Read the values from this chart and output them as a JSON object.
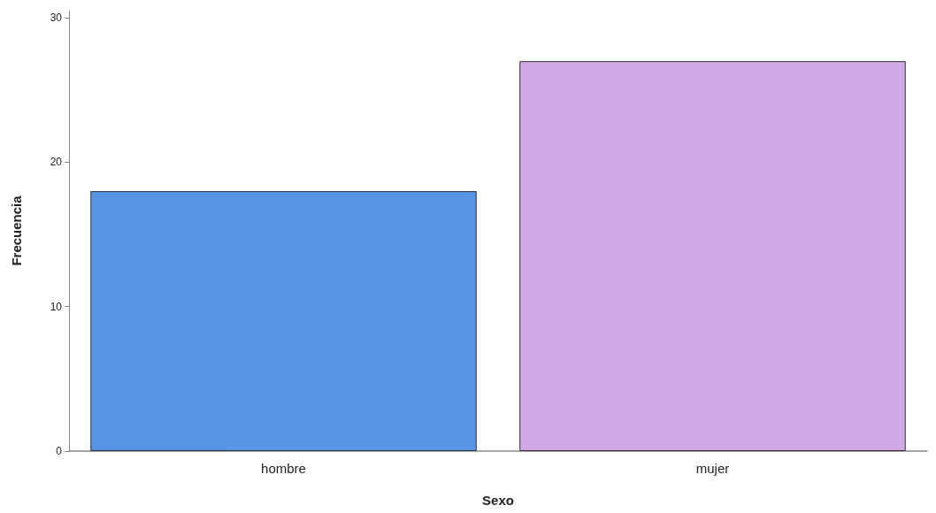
{
  "chart_data": {
    "type": "bar",
    "xlabel": "Sexo",
    "ylabel": "Frecuencia",
    "categories": [
      "hombre",
      "mujer"
    ],
    "values": [
      18,
      27
    ],
    "colors": [
      "#5794e6",
      "#d1a9e6"
    ],
    "ylim": [
      0,
      30.5
    ],
    "yticks": [
      0,
      10,
      20,
      30
    ],
    "grid": false
  }
}
